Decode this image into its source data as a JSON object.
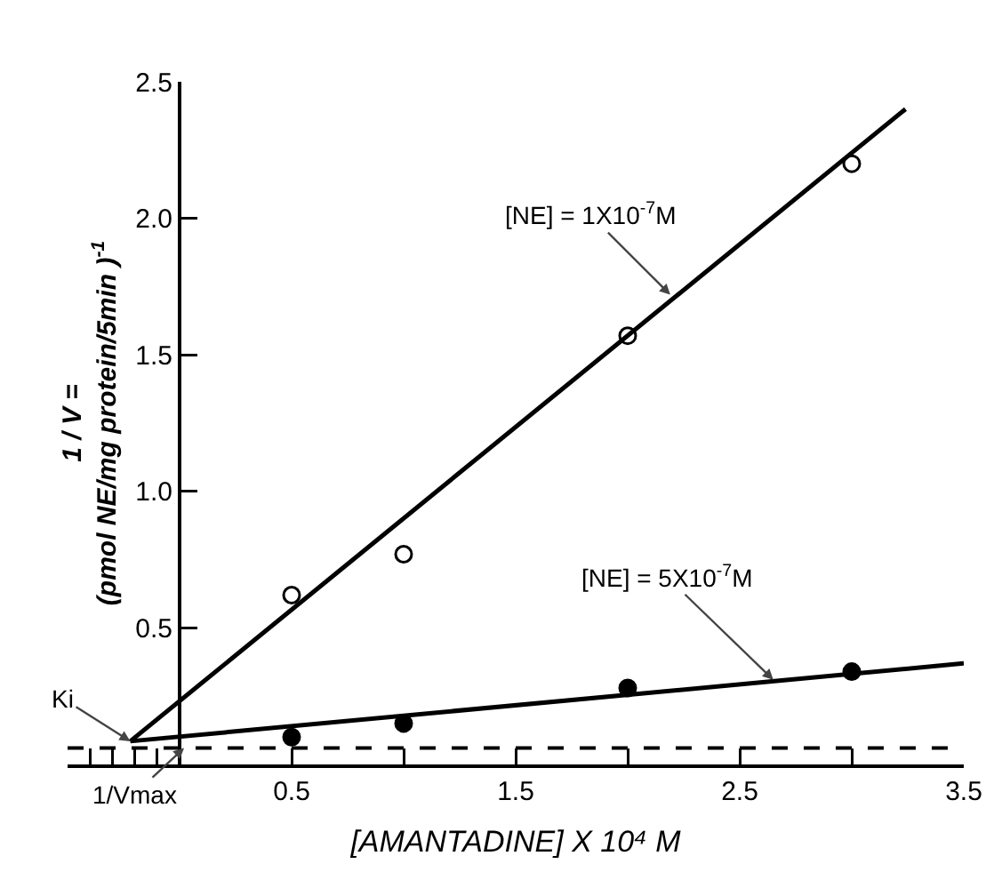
{
  "chart_data": {
    "type": "scatter",
    "xlabel": "[AMANTADINE] X 10⁴ M",
    "ylabel": "1 / V =\n(pmol NE/mg protein/5min )$^{-1}$",
    "xlim": [
      -0.5,
      3.5
    ],
    "ylim": [
      0,
      2.5
    ],
    "xticks": [
      {
        "value": -0.4,
        "label": null
      },
      {
        "value": -0.3,
        "label": null
      },
      {
        "value": -0.2,
        "label": null
      },
      {
        "value": -0.1,
        "label": null
      },
      0.5,
      {
        "value": 1,
        "label": null
      },
      1.5,
      {
        "value": 2,
        "label": null
      },
      2.5,
      {
        "value": 3,
        "label": null
      },
      3.5
    ],
    "yticks": [
      0.5,
      {
        "value": 1,
        "label": "1.0"
      },
      1.5,
      {
        "value": 2,
        "label": "2.0"
      },
      2.5
    ],
    "grid": false,
    "legend": false,
    "series": [
      {
        "type": "scatter",
        "marker": "circle",
        "color": "#ffffff",
        "x": [
          0.5,
          1,
          2,
          3
        ],
        "values": [
          0.62,
          0.77,
          1.57,
          2.2
        ]
      },
      {
        "type": "scatter",
        "marker": "circle",
        "color": "#000000",
        "x": [
          0.5,
          1,
          2,
          3
        ],
        "values": [
          0.1,
          0.15,
          0.28,
          0.34
        ]
      },
      {
        "type": "line",
        "color": "#000000",
        "x": [
          -0.22,
          3.24
        ],
        "values": [
          0.085,
          2.4
        ]
      },
      {
        "type": "line",
        "color": "#000000",
        "x": [
          -0.22,
          3.5
        ],
        "values": [
          0.085,
          0.37
        ]
      }
    ],
    "ref_lines": [
      {
        "axis": "y",
        "value": 0.06,
        "label": "1/Vmax",
        "color": "#000000",
        "line_style": "dashed"
      }
    ],
    "annotations": [
      {
        "text": "[NE] = 1X10$^{-7}$M",
        "x": 2.19,
        "y": 1.72
      },
      {
        "text": "[NE] = 5X10$^{-7}$M",
        "x": 2.65,
        "y": 0.31
      },
      {
        "text": "Ki",
        "x": -0.22,
        "y": 0.085
      }
    ]
  }
}
